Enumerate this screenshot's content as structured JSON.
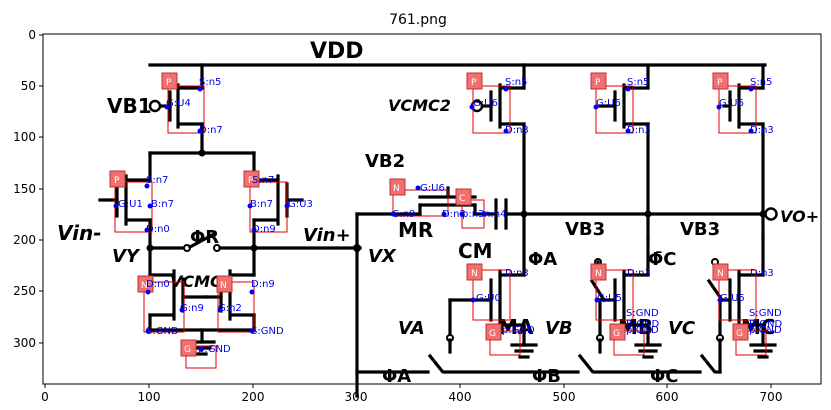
{
  "figure": {
    "title": "761.png",
    "x_ticks": [
      "0",
      "100",
      "200",
      "300",
      "400",
      "500",
      "600",
      "700"
    ],
    "y_ticks": [
      "0",
      "50",
      "100",
      "150",
      "200",
      "250",
      "300"
    ]
  },
  "circuit": {
    "labels": {
      "vdd": "VDD",
      "vb1": "VB1",
      "vcmc2": "VCMC2",
      "vb2": "VB2",
      "mr": "MR",
      "cm": "CM",
      "vb3a": "VB3",
      "vb3b": "VB3",
      "vin_minus": "Vin-",
      "vin_plus": "Vin+",
      "phi_r": "ΦR",
      "vy": "VY",
      "vx": "VX",
      "vcmc1": "VCMC1",
      "vo_plus": "VO+",
      "phi_a_sw": "ΦA",
      "phi_c_bar": "Φ̄C",
      "va": "VA",
      "vb": "VB",
      "vc": "VC",
      "ma": "MA",
      "mb": "MB",
      "mc": "MC",
      "phi_a_bot": "ΦA",
      "phi_b_bot": "ΦB",
      "phi_c_bot": "ΦC"
    }
  },
  "annotations": [
    {
      "type": "P",
      "pins": [
        "S:n5",
        "G:U4",
        "D:n7"
      ]
    },
    {
      "type": "P",
      "pins": [
        "S:n7",
        "G:U1",
        "B:n7",
        "D:n0"
      ]
    },
    {
      "type": "P",
      "pins": [
        "S:n7",
        "B:n7",
        "G:U3",
        "D:n9"
      ]
    },
    {
      "type": "N",
      "pins": [
        "D:n0",
        "G:n9",
        "S:GND"
      ]
    },
    {
      "type": "N",
      "pins": [
        "D:n9",
        "G:n2",
        "S:GND"
      ]
    },
    {
      "type": "G",
      "pins": [
        "p:GND"
      ]
    },
    {
      "type": "P",
      "pins": [
        "S:n5",
        "G:U6",
        "D:n3"
      ]
    },
    {
      "type": "P",
      "pins": [
        "S:n5",
        "G:U6",
        "D:n3"
      ]
    },
    {
      "type": "P",
      "pins": [
        "S:n5",
        "G:U6",
        "D:n3"
      ]
    },
    {
      "type": "N",
      "pins": [
        "G:U6",
        "S:n9",
        "D:n3"
      ]
    },
    {
      "type": "C",
      "pins": [
        "p:n3",
        "n:n4"
      ]
    },
    {
      "type": "N",
      "pins": [
        "D:n3",
        "G:U0"
      ]
    },
    {
      "type": "N",
      "pins": [
        "D:n3",
        "G:U5",
        "S:GND",
        "B:GND"
      ]
    },
    {
      "type": "N",
      "pins": [
        "D:n3",
        "G:U5",
        "S:GND",
        "B:GND"
      ]
    },
    {
      "type": "G",
      "pins": [
        "p:GND"
      ]
    },
    {
      "type": "G",
      "pins": [
        "p:GND"
      ]
    },
    {
      "type": "G",
      "pins": [
        "p:GND"
      ]
    }
  ]
}
